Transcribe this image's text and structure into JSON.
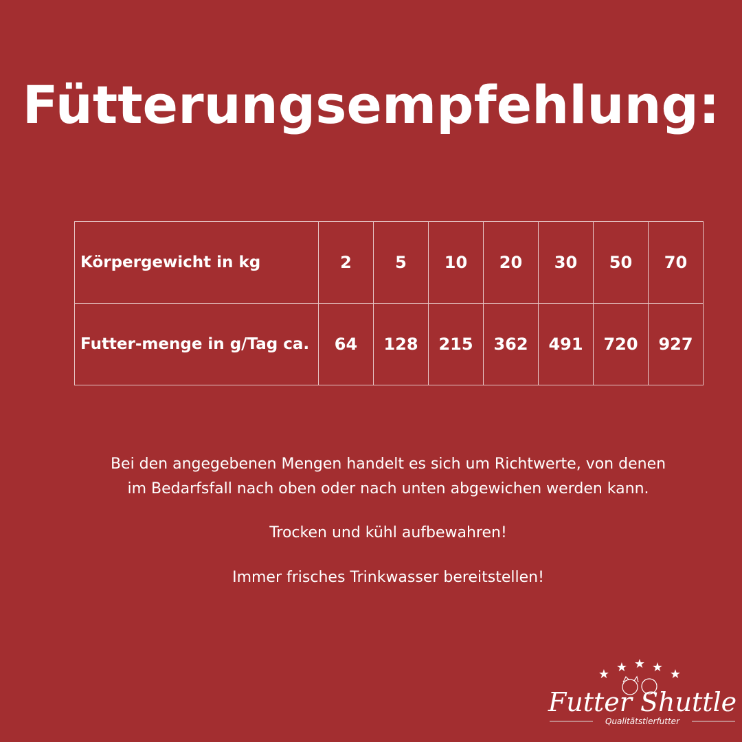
{
  "title": "Fütterungsempfehlung:",
  "table": {
    "rows": [
      {
        "label": "Körpergewicht in kg",
        "values": [
          "2",
          "5",
          "10",
          "20",
          "30",
          "50",
          "70"
        ]
      },
      {
        "label": "Futter-menge in g/Tag ca.",
        "values": [
          "64",
          "128",
          "215",
          "362",
          "491",
          "720",
          "927"
        ]
      }
    ]
  },
  "notes": {
    "line1": "Bei den angegebenen Mengen handelt es sich um Richtwerte, von denen",
    "line2": "im Bedarfsfall nach oben oder nach unten abgewichen werden kann.",
    "storage": "Trocken und kühl aufbewahren!",
    "water": "Immer frisches Trinkwasser bereitstellen!"
  },
  "logo": {
    "name": "Futter Shuttle",
    "tagline": "Qualitätstierfutter"
  },
  "colors": {
    "background": "#a32e30",
    "text": "#ffffff"
  }
}
